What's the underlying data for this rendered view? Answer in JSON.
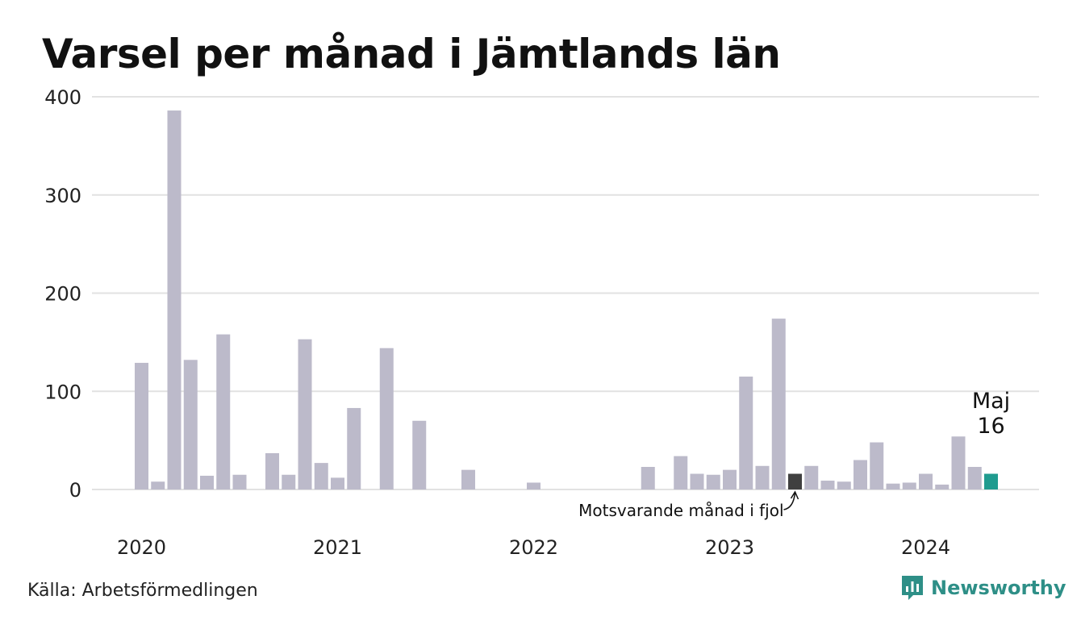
{
  "title": "Varsel per månad i Jämtlands län",
  "source": "Källa: Arbetsförmedlingen",
  "brand": {
    "name": "Newsworthy",
    "icon": "newsworthy-logo-icon"
  },
  "colors": {
    "bar": "#bcbaca",
    "comparison": "#404040",
    "highlight": "#1f9b8f",
    "grid": "#e2e2e2",
    "brand": "#2e8f87"
  },
  "chart_data": {
    "type": "bar",
    "ylim": [
      0,
      400
    ],
    "yticks": [
      0,
      100,
      200,
      300,
      400
    ],
    "grid": true,
    "x": [
      "2020-01",
      "2020-02",
      "2020-03",
      "2020-04",
      "2020-05",
      "2020-06",
      "2020-07",
      "2020-08",
      "2020-09",
      "2020-10",
      "2020-11",
      "2020-12",
      "2021-01",
      "2021-02",
      "2021-03",
      "2021-04",
      "2021-05",
      "2021-06",
      "2021-07",
      "2021-08",
      "2021-09",
      "2021-10",
      "2021-11",
      "2021-12",
      "2022-01",
      "2022-02",
      "2022-03",
      "2022-04",
      "2022-05",
      "2022-06",
      "2022-07",
      "2022-08",
      "2022-09",
      "2022-10",
      "2022-11",
      "2022-12",
      "2023-01",
      "2023-02",
      "2023-03",
      "2023-04",
      "2023-05",
      "2023-06",
      "2023-07",
      "2023-08",
      "2023-09",
      "2023-10",
      "2023-11",
      "2023-12",
      "2024-01",
      "2024-02",
      "2024-03",
      "2024-04",
      "2024-05"
    ],
    "values": [
      129,
      8,
      386,
      132,
      14,
      158,
      15,
      0,
      37,
      15,
      153,
      27,
      12,
      83,
      0,
      144,
      0,
      70,
      0,
      0,
      20,
      0,
      0,
      0,
      7,
      0,
      0,
      0,
      0,
      0,
      0,
      23,
      0,
      34,
      16,
      15,
      20,
      115,
      24,
      174,
      16,
      24,
      9,
      8,
      30,
      48,
      6,
      7,
      16,
      5,
      54,
      23,
      16
    ],
    "comparison_index": 40,
    "highlight_index": 52,
    "year_labels": [
      {
        "label": "2020",
        "index": 0
      },
      {
        "label": "2021",
        "index": 12
      },
      {
        "label": "2022",
        "index": 24
      },
      {
        "label": "2023",
        "index": 36
      },
      {
        "label": "2024",
        "index": 48
      }
    ],
    "annotations": {
      "comparison": "Motsvarande månad i fjol",
      "highlight_month": "Maj",
      "highlight_value": "16"
    }
  }
}
